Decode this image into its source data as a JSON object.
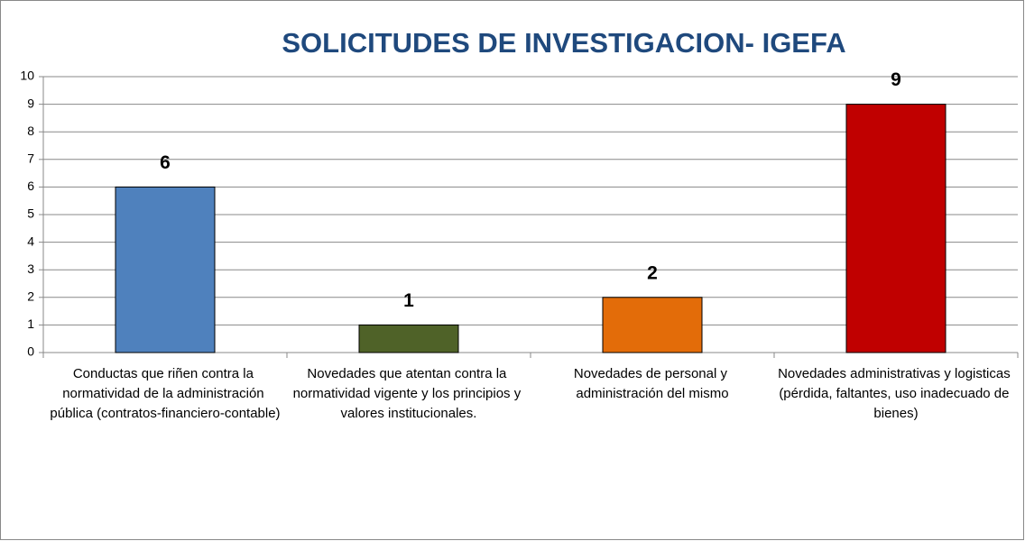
{
  "chart_data": {
    "type": "bar",
    "title": "SOLICITUDES DE INVESTIGACION- IGEFA",
    "categories": [
      "Conductas que riñen contra la normatividad de la administración pública (contratos-financiero-contable)",
      "Novedades que atentan contra la normatividad vigente y los principios y valores institucionales.",
      "Novedades de personal y administración del mismo",
      "Novedades administrativas y logisticas (pérdida, faltantes, uso inadecuado de bienes)"
    ],
    "values": [
      6,
      1,
      2,
      9
    ],
    "colors": [
      "#4f81bd",
      "#4f6228",
      "#e36c09",
      "#c00000"
    ],
    "ylim": [
      0,
      10
    ],
    "yticks": [
      0,
      1,
      2,
      3,
      4,
      5,
      6,
      7,
      8,
      9,
      10
    ],
    "grid": true
  }
}
